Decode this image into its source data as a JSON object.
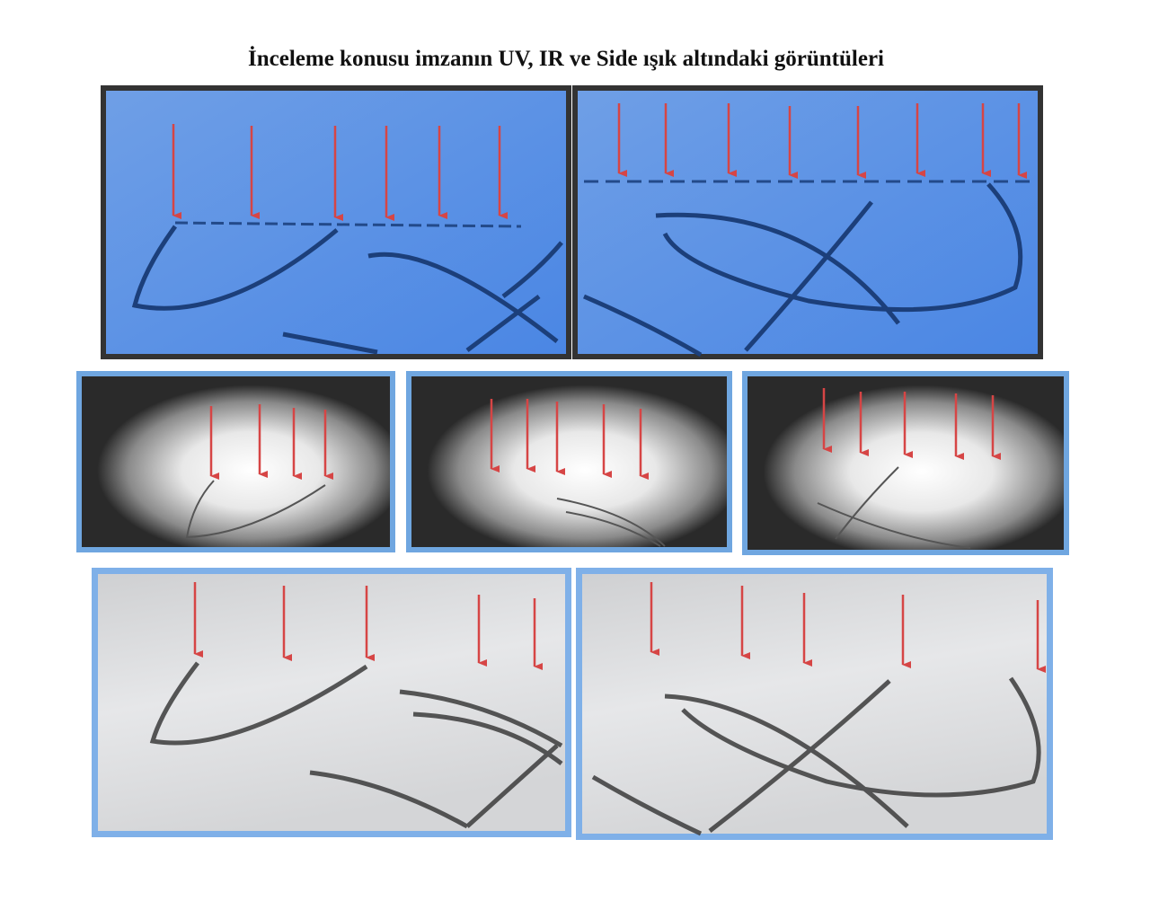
{
  "header": {
    "title": "İnceleme konusu imzanın UV, IR ve Side ışık altındaki görüntüleri"
  }
}
